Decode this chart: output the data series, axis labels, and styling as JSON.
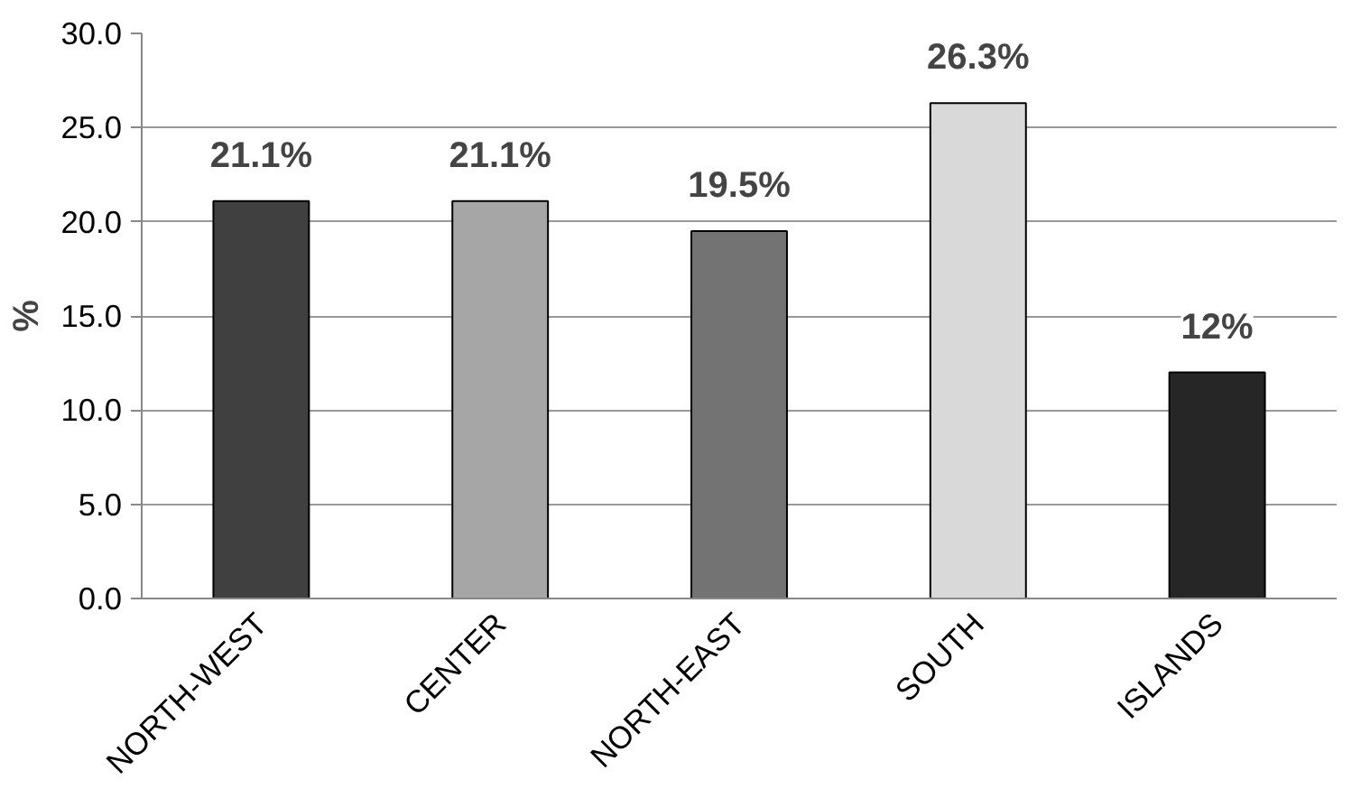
{
  "chart_data": {
    "type": "bar",
    "ylabel": "%",
    "categories": [
      "NORTH-WEST",
      "CENTER",
      "NORTH-EAST",
      "SOUTH",
      "ISLANDS"
    ],
    "values": [
      21.1,
      21.1,
      19.5,
      26.3,
      12
    ],
    "colors": [
      "#404040",
      "#a6a6a6",
      "#737373",
      "#d9d9d9",
      "#262626"
    ],
    "value_labels": [
      "21.1%",
      "21.1%",
      "19.5%",
      "26.3%",
      "12%"
    ],
    "ylim": [
      0,
      30
    ],
    "yticks": [
      {
        "value": 0,
        "label": "0.0"
      },
      {
        "value": 5,
        "label": "5.0"
      },
      {
        "value": 10,
        "label": "10.0"
      },
      {
        "value": 15,
        "label": "15.0"
      },
      {
        "value": 20,
        "label": "20.0"
      },
      {
        "value": 25,
        "label": "25.0"
      },
      {
        "value": 30,
        "label": "30.0"
      }
    ],
    "grid": "y"
  }
}
